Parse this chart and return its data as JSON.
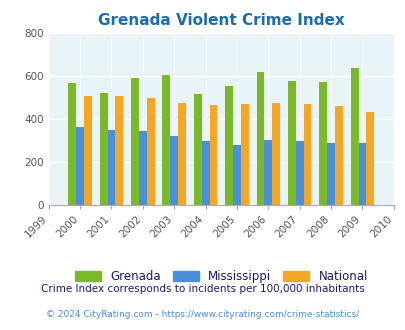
{
  "title": "Grenada Violent Crime Index",
  "years": [
    1999,
    2000,
    2001,
    2002,
    2003,
    2004,
    2005,
    2006,
    2007,
    2008,
    2009,
    2010
  ],
  "grenada": [
    null,
    565,
    520,
    590,
    605,
    515,
    555,
    620,
    575,
    570,
    635,
    null
  ],
  "mississippi": [
    null,
    360,
    350,
    342,
    322,
    298,
    280,
    302,
    298,
    287,
    287,
    null
  ],
  "national": [
    null,
    507,
    507,
    498,
    474,
    463,
    469,
    474,
    469,
    458,
    430,
    null
  ],
  "bar_width": 0.25,
  "colors": {
    "grenada": "#7aba2a",
    "mississippi": "#4a90d9",
    "national": "#f5a623"
  },
  "ylim": [
    0,
    800
  ],
  "yticks": [
    0,
    200,
    400,
    600,
    800
  ],
  "plot_bg": "#e8f4f8",
  "title_color": "#1a6db5",
  "legend_labels": [
    "Grenada",
    "Mississippi",
    "National"
  ],
  "legend_text_color": "#1a1a6e",
  "footnote1": "Crime Index corresponds to incidents per 100,000 inhabitants",
  "footnote2": "© 2024 CityRating.com - https://www.cityrating.com/crime-statistics/",
  "footnote1_color": "#1a1a6e",
  "footnote2_color": "#4a90d9"
}
